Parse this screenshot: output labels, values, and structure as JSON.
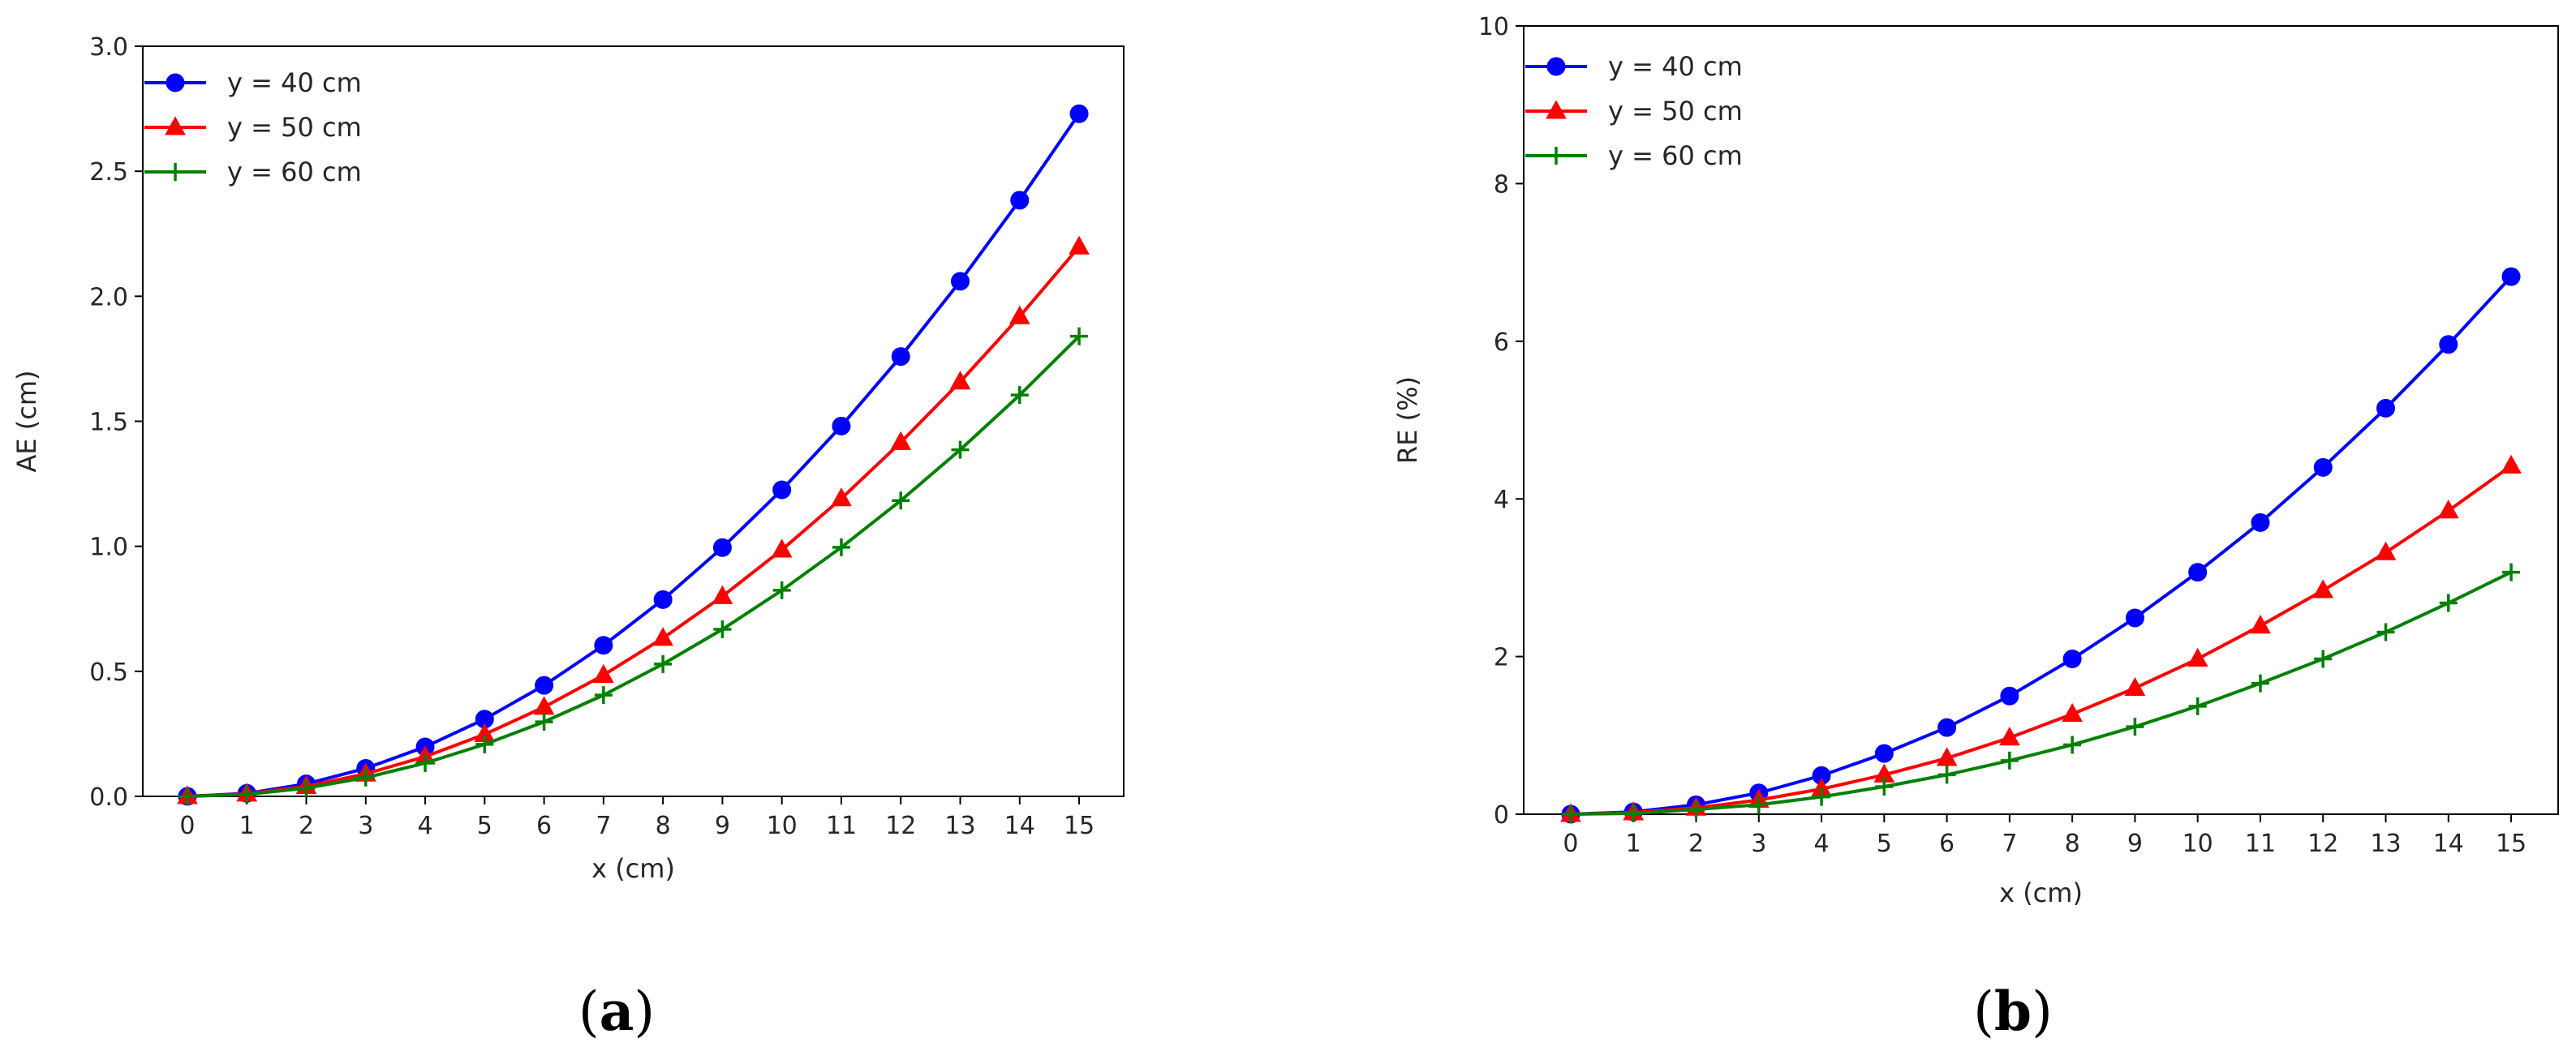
{
  "chart_data": [
    {
      "type": "line",
      "panel_label": "a",
      "xlabel": "x (cm)",
      "ylabel": "AE (cm)",
      "xlim": [
        -0.75,
        15.75
      ],
      "ylim": [
        0,
        3.0
      ],
      "xticks": [
        0,
        1,
        2,
        3,
        4,
        5,
        6,
        7,
        8,
        9,
        10,
        11,
        12,
        13,
        14,
        15
      ],
      "yticks": [
        0.0,
        0.5,
        1.0,
        1.5,
        2.0,
        2.5,
        3.0
      ],
      "ytick_labels": [
        "0.0",
        "0.5",
        "1.0",
        "1.5",
        "2.0",
        "2.5",
        "3.0"
      ],
      "grid": false,
      "legend_position": "top-left",
      "x": [
        0,
        1,
        2,
        3,
        4,
        5,
        6,
        7,
        8,
        9,
        10,
        11,
        12,
        13,
        14,
        15
      ],
      "series": [
        {
          "name": "y = 40 cm",
          "color": "#0000ff",
          "marker": "circle",
          "values": [
            0.0,
            0.012,
            0.05,
            0.112,
            0.198,
            0.309,
            0.444,
            0.604,
            0.787,
            0.995,
            1.226,
            1.481,
            1.759,
            2.06,
            2.384,
            2.73
          ]
        },
        {
          "name": "y = 50 cm",
          "color": "#ff0000",
          "marker": "triangle",
          "values": [
            0.0,
            0.01,
            0.04,
            0.09,
            0.159,
            0.248,
            0.357,
            0.485,
            0.633,
            0.8,
            0.986,
            1.191,
            1.416,
            1.658,
            1.919,
            2.198
          ]
        },
        {
          "name": "y = 60 cm",
          "color": "#008000",
          "marker": "plus",
          "values": [
            0.0,
            0.008,
            0.033,
            0.075,
            0.133,
            0.208,
            0.298,
            0.405,
            0.529,
            0.668,
            0.824,
            0.996,
            1.183,
            1.386,
            1.605,
            1.84
          ]
        }
      ]
    },
    {
      "type": "line",
      "panel_label": "b",
      "xlabel": "x (cm)",
      "ylabel": "RE (%)",
      "xlim": [
        -0.75,
        15.75
      ],
      "ylim": [
        0,
        10
      ],
      "xticks": [
        0,
        1,
        2,
        3,
        4,
        5,
        6,
        7,
        8,
        9,
        10,
        11,
        12,
        13,
        14,
        15
      ],
      "yticks": [
        0,
        2,
        4,
        6,
        8,
        10
      ],
      "ytick_labels": [
        "0",
        "2",
        "4",
        "6",
        "8",
        "10"
      ],
      "grid": false,
      "legend_position": "top-left",
      "x": [
        0,
        1,
        2,
        3,
        4,
        5,
        6,
        7,
        8,
        9,
        10,
        11,
        12,
        13,
        14,
        15
      ],
      "series": [
        {
          "name": "y = 40 cm",
          "color": "#0000ff",
          "marker": "circle",
          "values": [
            0.0,
            0.03,
            0.12,
            0.27,
            0.49,
            0.77,
            1.1,
            1.5,
            1.97,
            2.49,
            3.07,
            3.7,
            4.4,
            5.15,
            5.96,
            6.82
          ]
        },
        {
          "name": "y = 50 cm",
          "color": "#ff0000",
          "marker": "triangle",
          "values": [
            0.0,
            0.02,
            0.08,
            0.18,
            0.32,
            0.5,
            0.71,
            0.97,
            1.27,
            1.6,
            1.97,
            2.39,
            2.84,
            3.32,
            3.85,
            4.42
          ]
        },
        {
          "name": "y = 60 cm",
          "color": "#008000",
          "marker": "plus",
          "values": [
            0.0,
            0.01,
            0.06,
            0.12,
            0.22,
            0.35,
            0.5,
            0.68,
            0.88,
            1.11,
            1.37,
            1.66,
            1.97,
            2.31,
            2.68,
            3.07
          ]
        }
      ]
    }
  ]
}
